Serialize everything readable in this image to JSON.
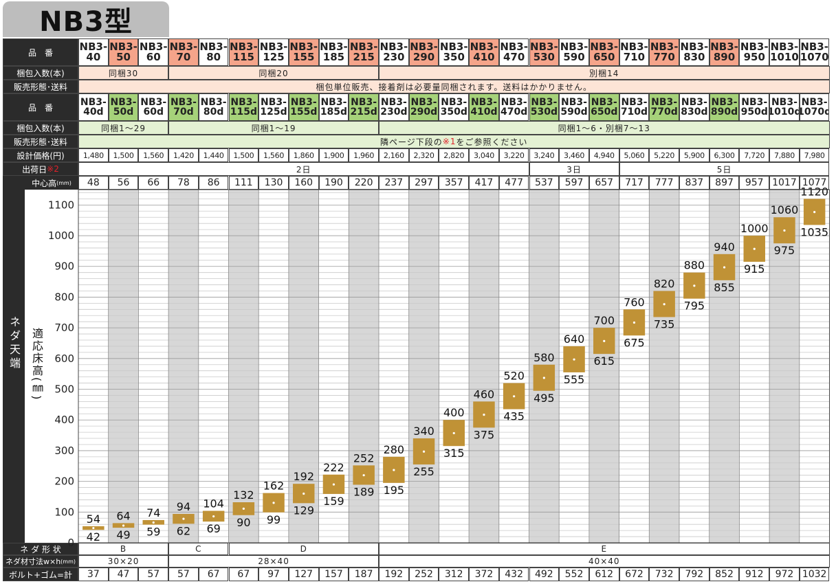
{
  "title": "NB3型",
  "row_labels": {
    "part_no": "品　番",
    "pack_qty": "梱包入数(本)",
    "sales": "販売形態･送料",
    "price": "設計価格(円)",
    "ship": "出荷日",
    "ship_mark": "※2",
    "center_height": "中心高",
    "center_unit": "(mm)",
    "side_outer": "ネダ天端",
    "side_inner": "適応床高(㎜)",
    "shape": "ネ ダ 形 状",
    "size": "ネダ材寸法w×h",
    "size_unit": "(mm)",
    "bolt": "ボルト+ゴム=計"
  },
  "products": [
    "NB3-40",
    "NB3-50",
    "NB3-60",
    "NB3-70",
    "NB3-80",
    "NB3-115",
    "NB3-125",
    "NB3-155",
    "NB3-185",
    "NB3-215",
    "NB3-230",
    "NB3-290",
    "NB3-350",
    "NB3-410",
    "NB3-470",
    "NB3-530",
    "NB3-590",
    "NB3-650",
    "NB3-710",
    "NB3-770",
    "NB3-830",
    "NB3-890",
    "NB3-950",
    "NB3-1010",
    "NB3-1070"
  ],
  "products_d": [
    "NB3-40d",
    "NB3-50d",
    "NB3-60d",
    "NB3-70d",
    "NB3-80d",
    "NB3-115d",
    "NB3-125d",
    "NB3-155d",
    "NB3-185d",
    "NB3-215d",
    "NB3-230d",
    "NB3-290d",
    "NB3-350d",
    "NB3-410d",
    "NB3-470d",
    "NB3-530d",
    "NB3-590d",
    "NB3-650d",
    "NB3-710d",
    "NB3-770d",
    "NB3-830d",
    "NB3-890d",
    "NB3-950d",
    "NB3-1010d",
    "NB3-1070d"
  ],
  "pack_groups": [
    {
      "text": "同梱30",
      "start": 0,
      "span": 3
    },
    {
      "text": "同梱20",
      "start": 3,
      "span": 7
    },
    {
      "text": "別梱14",
      "start": 10,
      "span": 15
    }
  ],
  "sales_text": "梱包単位販売、接着剤は必要量同梱されます。送料はかかりません。",
  "pack_groups_d": [
    {
      "text": "同梱1～29",
      "start": 0,
      "span": 3
    },
    {
      "text": "同梱1～19",
      "start": 3,
      "span": 7
    },
    {
      "text": "同梱1～6・別梱7～13",
      "start": 10,
      "span": 15
    }
  ],
  "sales_text_d_pre": "隣ページ下段の",
  "sales_text_d_mark": "※1",
  "sales_text_d_post": "をご参照ください",
  "prices": [
    "1,480",
    "1,500",
    "1,560",
    "1,420",
    "1,440",
    "1,500",
    "1,560",
    "1,860",
    "1,900",
    "1,960",
    "2,160",
    "2,320",
    "2,820",
    "3,040",
    "3,220",
    "3,240",
    "3,460",
    "4,940",
    "5,060",
    "5,220",
    "5,900",
    "6,300",
    "7,720",
    "7,880",
    "7,980"
  ],
  "ship_groups": [
    {
      "text": "2日",
      "start": 0,
      "span": 15
    },
    {
      "text": "3日",
      "start": 15,
      "span": 3
    },
    {
      "text": "5日",
      "start": 18,
      "span": 7
    }
  ],
  "center_heights": [
    "48",
    "56",
    "66",
    "78",
    "86",
    "111",
    "130",
    "160",
    "190",
    "220",
    "237",
    "297",
    "357",
    "417",
    "477",
    "537",
    "597",
    "657",
    "717",
    "777",
    "837",
    "897",
    "957",
    "1017",
    "1077"
  ],
  "shape_groups": [
    {
      "text": "B",
      "start": 0,
      "span": 3
    },
    {
      "text": "C",
      "start": 3,
      "span": 2
    },
    {
      "text": "D",
      "start": 5,
      "span": 5
    },
    {
      "text": "E",
      "start": 10,
      "span": 15
    }
  ],
  "size_groups": [
    {
      "text": "30×20",
      "start": 0,
      "span": 3
    },
    {
      "text": "28×40",
      "start": 3,
      "span": 7
    },
    {
      "text": "40×40",
      "start": 10,
      "span": 15
    }
  ],
  "bolts": [
    "37",
    "47",
    "57",
    "57",
    "67",
    "67",
    "97",
    "127",
    "157",
    "187",
    "192",
    "252",
    "312",
    "372",
    "432",
    "492",
    "552",
    "612",
    "672",
    "732",
    "792",
    "852",
    "912",
    "972",
    "1032"
  ],
  "colors": {
    "header_bg": "#2b2b2b",
    "salmon": "#f5a48a",
    "pale_salmon": "#fde4d6",
    "green": "#a6d27a",
    "pale_green": "#e4f1d3",
    "gray_col": "#d7d7d7",
    "bar": "#c09236",
    "red_mark": "#e0222a"
  },
  "chart_data": {
    "type": "range-bar",
    "ylim": [
      0,
      1150
    ],
    "yticks": [
      0,
      100,
      200,
      300,
      400,
      500,
      600,
      700,
      800,
      900,
      1000,
      1100
    ],
    "categories": [
      "NB3-40",
      "NB3-50",
      "NB3-60",
      "NB3-70",
      "NB3-80",
      "NB3-115",
      "NB3-125",
      "NB3-155",
      "NB3-185",
      "NB3-215",
      "NB3-230",
      "NB3-290",
      "NB3-350",
      "NB3-410",
      "NB3-470",
      "NB3-530",
      "NB3-590",
      "NB3-650",
      "NB3-710",
      "NB3-770",
      "NB3-830",
      "NB3-890",
      "NB3-950",
      "NB3-1010",
      "NB3-1070"
    ],
    "low": [
      42,
      49,
      59,
      62,
      69,
      90,
      99,
      129,
      159,
      189,
      195,
      255,
      315,
      375,
      435,
      495,
      555,
      615,
      675,
      735,
      795,
      855,
      915,
      975,
      1035
    ],
    "high": [
      54,
      64,
      74,
      94,
      104,
      132,
      162,
      192,
      222,
      252,
      280,
      340,
      400,
      460,
      520,
      580,
      640,
      700,
      760,
      820,
      880,
      940,
      1000,
      1060,
      1120
    ],
    "center": [
      48,
      56,
      66,
      78,
      86,
      111,
      130,
      160,
      190,
      220,
      237,
      297,
      357,
      417,
      477,
      537,
      597,
      657,
      717,
      777,
      837,
      897,
      957,
      1017,
      1077
    ],
    "grid": true
  }
}
